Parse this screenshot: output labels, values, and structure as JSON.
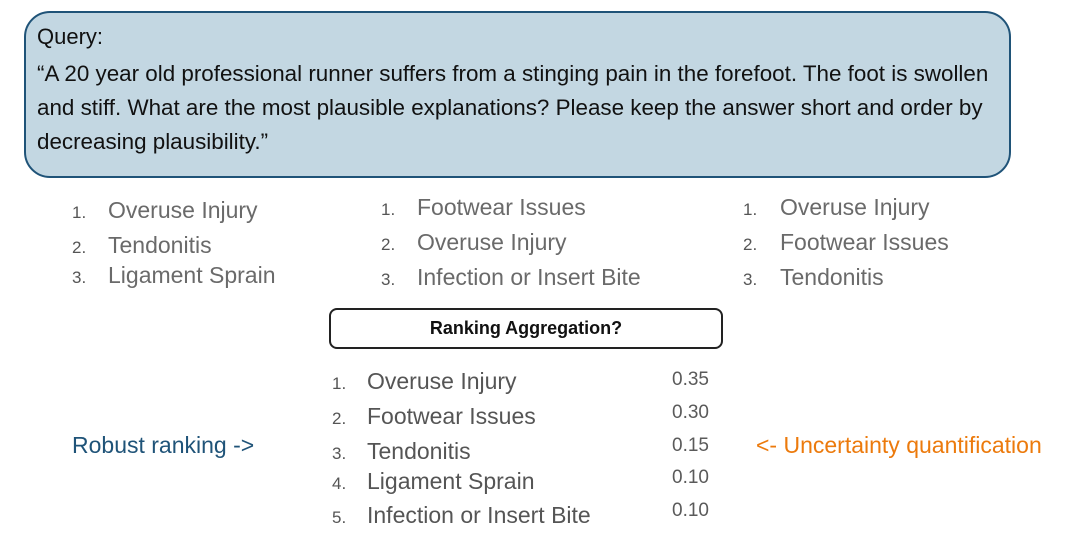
{
  "query": {
    "label": "Query:",
    "text": "“A 20 year old professional runner suffers from a stinging pain in the forefoot. The foot is swollen and stiff. What are the most plausible explanations? Please keep the answer short and order by decreasing plausibility.”"
  },
  "answers": [
    {
      "items": [
        {
          "num": "1.",
          "label": "Overuse Injury"
        },
        {
          "num": "2.",
          "label": "Tendonitis"
        },
        {
          "num": "3.",
          "label": "Ligament Sprain"
        }
      ]
    },
    {
      "items": [
        {
          "num": "1.",
          "label": "Footwear Issues"
        },
        {
          "num": "2.",
          "label": "Overuse Injury"
        },
        {
          "num": "3.",
          "label": "Infection or Insert Bite"
        }
      ]
    },
    {
      "items": [
        {
          "num": "1.",
          "label": "Overuse Injury"
        },
        {
          "num": "2.",
          "label": "Footwear Issues"
        },
        {
          "num": "3.",
          "label": "Tendonitis"
        }
      ]
    }
  ],
  "aggregation": {
    "label": "Ranking Aggregation?"
  },
  "result": {
    "items": [
      {
        "num": "1.",
        "label": "Overuse Injury",
        "score": "0.35"
      },
      {
        "num": "2.",
        "label": "Footwear Issues",
        "score": "0.30"
      },
      {
        "num": "3.",
        "label": "Tendonitis",
        "score": "0.15"
      },
      {
        "num": "4.",
        "label": "Ligament Sprain",
        "score": "0.10"
      },
      {
        "num": "5.",
        "label": "Infection or Insert Bite",
        "score": "0.10"
      }
    ]
  },
  "annotations": {
    "left": "Robust ranking ->",
    "right": "<- Uncertainty quantification",
    "left_color": "#1f5378",
    "right_color": "#ec7a0c"
  }
}
